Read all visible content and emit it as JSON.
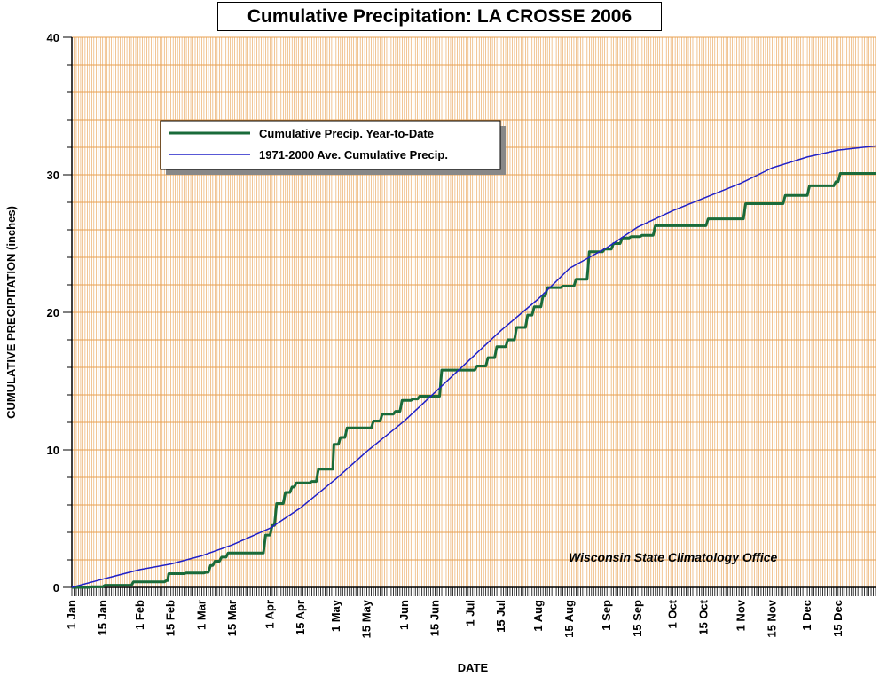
{
  "chart_data": {
    "type": "line",
    "title": "Cumulative Precipitation: LA CROSSE 2006",
    "xlabel": "DATE",
    "ylabel": "CUMULATIVE PRECIPITATION (inches)",
    "ylim": [
      0,
      40
    ],
    "yticks": [
      "0",
      "10",
      "20",
      "30",
      "40"
    ],
    "xlim_days": [
      1,
      366
    ],
    "xticks": [
      {
        "day": 1,
        "label": "1 Jan"
      },
      {
        "day": 15,
        "label": "15 Jan"
      },
      {
        "day": 32,
        "label": "1 Feb"
      },
      {
        "day": 46,
        "label": "15 Feb"
      },
      {
        "day": 60,
        "label": "1 Mar"
      },
      {
        "day": 74,
        "label": "15 Mar"
      },
      {
        "day": 91,
        "label": "1 Apr"
      },
      {
        "day": 105,
        "label": "15 Apr"
      },
      {
        "day": 121,
        "label": "1 May"
      },
      {
        "day": 135,
        "label": "15 May"
      },
      {
        "day": 152,
        "label": "1 Jun"
      },
      {
        "day": 166,
        "label": "15 Jun"
      },
      {
        "day": 182,
        "label": "1 Jul"
      },
      {
        "day": 196,
        "label": "15 Jul"
      },
      {
        "day": 213,
        "label": "1 Aug"
      },
      {
        "day": 227,
        "label": "15 Aug"
      },
      {
        "day": 244,
        "label": "1 Sep"
      },
      {
        "day": 258,
        "label": "15 Sep"
      },
      {
        "day": 274,
        "label": "1 Oct"
      },
      {
        "day": 288,
        "label": "15 Oct"
      },
      {
        "day": 305,
        "label": "1 Nov"
      },
      {
        "day": 319,
        "label": "15 Nov"
      },
      {
        "day": 335,
        "label": "1 Dec"
      },
      {
        "day": 349,
        "label": "15 Dec"
      }
    ],
    "grid": true,
    "legend_position": "upper-left",
    "colors": {
      "background": "#ffffff",
      "grid": "#e8a050",
      "axis": "#000000",
      "observed": "#1a6b3a",
      "average": "#2020c8"
    },
    "series": [
      {
        "name": "Cumulative Precip. Year-to-Date",
        "style": "step",
        "points": [
          [
            1,
            0.0
          ],
          [
            10,
            0.05
          ],
          [
            16,
            0.15
          ],
          [
            27,
            0.15
          ],
          [
            29,
            0.4
          ],
          [
            44,
            0.5
          ],
          [
            45,
            1.0
          ],
          [
            53,
            1.05
          ],
          [
            62,
            1.1
          ],
          [
            64,
            1.6
          ],
          [
            66,
            1.9
          ],
          [
            69,
            2.2
          ],
          [
            72,
            2.5
          ],
          [
            86,
            2.5
          ],
          [
            89,
            3.8
          ],
          [
            92,
            4.5
          ],
          [
            94,
            6.1
          ],
          [
            98,
            6.9
          ],
          [
            101,
            7.3
          ],
          [
            103,
            7.6
          ],
          [
            110,
            7.7
          ],
          [
            113,
            8.6
          ],
          [
            119,
            8.6
          ],
          [
            120,
            10.4
          ],
          [
            123,
            10.9
          ],
          [
            126,
            11.6
          ],
          [
            136,
            11.6
          ],
          [
            138,
            12.1
          ],
          [
            142,
            12.6
          ],
          [
            148,
            12.8
          ],
          [
            151,
            13.6
          ],
          [
            156,
            13.7
          ],
          [
            159,
            13.9
          ],
          [
            166,
            13.9
          ],
          [
            169,
            15.8
          ],
          [
            182,
            15.8
          ],
          [
            185,
            16.1
          ],
          [
            190,
            16.7
          ],
          [
            194,
            17.5
          ],
          [
            199,
            18.0
          ],
          [
            203,
            18.9
          ],
          [
            208,
            19.8
          ],
          [
            211,
            20.4
          ],
          [
            215,
            21.2
          ],
          [
            217,
            21.8
          ],
          [
            224,
            21.9
          ],
          [
            230,
            22.4
          ],
          [
            236,
            24.4
          ],
          [
            243,
            24.6
          ],
          [
            247,
            25.0
          ],
          [
            251,
            25.4
          ],
          [
            255,
            25.5
          ],
          [
            260,
            25.6
          ],
          [
            266,
            26.3
          ],
          [
            286,
            26.3
          ],
          [
            290,
            26.8
          ],
          [
            301,
            26.8
          ],
          [
            307,
            27.9
          ],
          [
            322,
            27.9
          ],
          [
            325,
            28.5
          ],
          [
            333,
            28.5
          ],
          [
            336,
            29.2
          ],
          [
            344,
            29.2
          ],
          [
            348,
            29.5
          ],
          [
            350,
            30.1
          ]
        ]
      },
      {
        "name": "1971-2000 Ave. Cumulative Precip.",
        "style": "line",
        "points": [
          [
            1,
            0.0
          ],
          [
            15,
            0.6
          ],
          [
            32,
            1.3
          ],
          [
            46,
            1.7
          ],
          [
            60,
            2.3
          ],
          [
            74,
            3.1
          ],
          [
            91,
            4.3
          ],
          [
            105,
            5.8
          ],
          [
            121,
            7.9
          ],
          [
            135,
            9.9
          ],
          [
            152,
            12.1
          ],
          [
            166,
            14.2
          ],
          [
            182,
            16.6
          ],
          [
            196,
            18.7
          ],
          [
            213,
            21.0
          ],
          [
            227,
            23.2
          ],
          [
            244,
            24.7
          ],
          [
            258,
            26.2
          ],
          [
            274,
            27.4
          ],
          [
            288,
            28.3
          ],
          [
            305,
            29.4
          ],
          [
            319,
            30.5
          ],
          [
            335,
            31.3
          ],
          [
            349,
            31.8
          ],
          [
            366,
            32.1
          ]
        ]
      }
    ]
  },
  "credit": "Wisconsin State Climatology Office"
}
